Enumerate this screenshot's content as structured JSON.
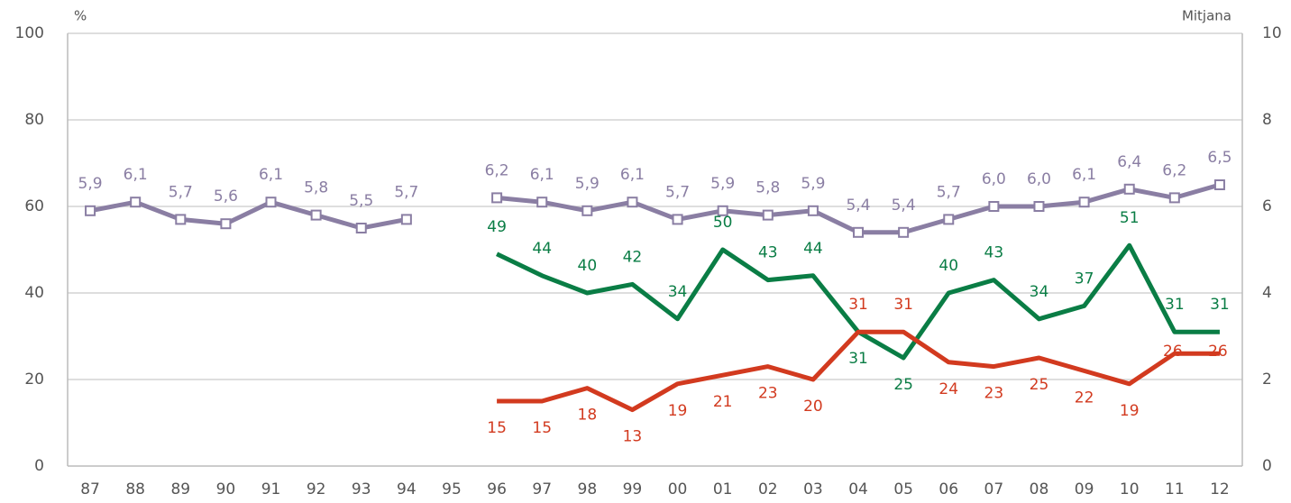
{
  "chart_data": {
    "type": "line",
    "y_label": "%",
    "y2_label": "Mitjana",
    "categories": [
      "87",
      "88",
      "89",
      "90",
      "91",
      "92",
      "93",
      "94",
      "95",
      "96",
      "97",
      "98",
      "99",
      "00",
      "01",
      "02",
      "03",
      "04",
      "05",
      "06",
      "07",
      "08",
      "09",
      "10",
      "11",
      "12"
    ],
    "ylim": [
      0,
      100
    ],
    "yticks": [
      0,
      20,
      40,
      60,
      80,
      100
    ],
    "y2lim": [
      0,
      10
    ],
    "y2ticks": [
      0,
      2,
      4,
      6,
      8,
      10
    ],
    "grid": true,
    "series": [
      {
        "color": "#8a7ea3",
        "axis": "y2",
        "markers": true,
        "values": [
          5.9,
          6.1,
          5.7,
          5.6,
          6.1,
          5.8,
          5.5,
          5.7,
          null,
          6.2,
          6.1,
          5.9,
          6.1,
          5.7,
          5.9,
          5.8,
          5.9,
          5.4,
          5.4,
          5.7,
          6.0,
          6.0,
          6.1,
          6.4,
          6.2,
          6.5
        ],
        "value_labels": [
          "5,9",
          "6,1",
          "5,7",
          "5,6",
          "6,1",
          "5,8",
          "5,5",
          "5,7",
          null,
          "6,2",
          "6,1",
          "5,9",
          "6,1",
          "5,7",
          "5,9",
          "5,8",
          "5,9",
          "5,4",
          "5,4",
          "5,7",
          "6,0",
          "6,0",
          "6,1",
          "6,4",
          "6,2",
          "6,5"
        ]
      },
      {
        "color": "#0a7d45",
        "values": [
          null,
          null,
          null,
          null,
          null,
          null,
          null,
          null,
          null,
          49,
          44,
          40,
          42,
          34,
          50,
          43,
          44,
          31,
          25,
          40,
          43,
          34,
          37,
          51,
          31,
          31
        ]
      },
      {
        "color": "#d23a1f",
        "values": [
          null,
          null,
          null,
          null,
          null,
          null,
          null,
          null,
          null,
          15,
          15,
          18,
          13,
          19,
          21,
          23,
          20,
          31,
          31,
          24,
          23,
          25,
          22,
          19,
          26,
          26
        ]
      }
    ]
  }
}
